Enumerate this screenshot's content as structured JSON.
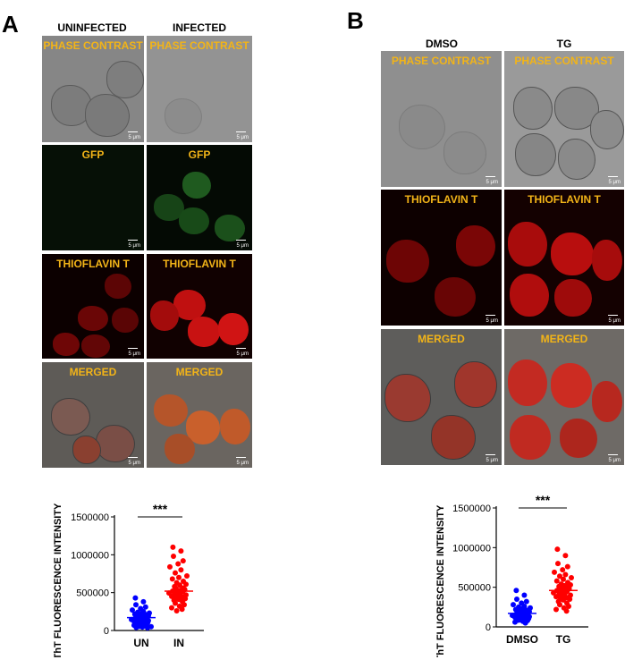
{
  "panel_a": {
    "letter": "A",
    "columns": [
      "UNINFECTED",
      "INFECTED"
    ],
    "rows": [
      "PHASE CONTRAST",
      "GFP",
      "THIOFLAVIN T",
      "MERGED"
    ],
    "scale_bar": "5 μm"
  },
  "panel_b": {
    "letter": "B",
    "columns": [
      "DMSO",
      "TG"
    ],
    "rows": [
      "PHASE CONTRAST",
      "THIOFLAVIN T",
      "MERGED"
    ],
    "scale_bar": "5 μm"
  },
  "chart_data": [
    {
      "type": "scatter",
      "title": "",
      "xlabel": "",
      "ylabel": "ThT FLUORESCENCE INTENSITY",
      "ylim": [
        0,
        1500000
      ],
      "yticks": [
        "0",
        "500000",
        "1000000",
        "1500000"
      ],
      "categories": [
        "UN",
        "IN"
      ],
      "significance": "***",
      "series": [
        {
          "category": "UN",
          "color": "#0000ff",
          "mean": 170000,
          "values": [
            430000,
            380000,
            340000,
            310000,
            290000,
            270000,
            250000,
            240000,
            230000,
            220000,
            215000,
            210000,
            200000,
            195000,
            190000,
            185000,
            180000,
            175000,
            170000,
            165000,
            160000,
            155000,
            150000,
            145000,
            140000,
            135000,
            130000,
            125000,
            120000,
            115000,
            110000,
            105000,
            100000,
            95000,
            90000,
            85000,
            80000,
            75000,
            70000,
            60000,
            55000,
            50000,
            45000,
            40000,
            35000
          ]
        },
        {
          "category": "IN",
          "color": "#ff0000",
          "mean": 520000,
          "values": [
            1100000,
            1050000,
            980000,
            920000,
            880000,
            840000,
            800000,
            760000,
            720000,
            700000,
            680000,
            650000,
            630000,
            610000,
            600000,
            580000,
            560000,
            550000,
            540000,
            530000,
            520000,
            510000,
            500000,
            495000,
            490000,
            480000,
            470000,
            460000,
            450000,
            440000,
            430000,
            420000,
            410000,
            400000,
            380000,
            360000,
            340000,
            320000,
            300000,
            280000,
            260000
          ]
        }
      ]
    },
    {
      "type": "scatter",
      "title": "",
      "xlabel": "",
      "ylabel": "ThT FLUORESCENCE INTENSITY",
      "ylim": [
        0,
        1500000
      ],
      "yticks": [
        "0",
        "500000",
        "1000000",
        "1500000"
      ],
      "categories": [
        "DMSO",
        "TG"
      ],
      "significance": "***",
      "series": [
        {
          "category": "DMSO",
          "color": "#0000ff",
          "mean": 170000,
          "values": [
            460000,
            400000,
            350000,
            320000,
            300000,
            280000,
            260000,
            250000,
            240000,
            230000,
            220000,
            210000,
            200000,
            195000,
            190000,
            185000,
            180000,
            175000,
            170000,
            165000,
            160000,
            155000,
            150000,
            145000,
            140000,
            135000,
            130000,
            125000,
            120000,
            115000,
            110000,
            105000,
            100000,
            95000,
            90000,
            85000,
            80000,
            70000,
            60000,
            50000
          ]
        },
        {
          "category": "TG",
          "color": "#ff0000",
          "mean": 460000,
          "values": [
            980000,
            900000,
            800000,
            760000,
            720000,
            690000,
            660000,
            640000,
            620000,
            600000,
            580000,
            560000,
            540000,
            530000,
            520000,
            510000,
            500000,
            490000,
            480000,
            470000,
            460000,
            450000,
            440000,
            430000,
            420000,
            410000,
            400000,
            390000,
            380000,
            370000,
            360000,
            350000,
            340000,
            320000,
            300000,
            280000,
            260000,
            240000,
            220000,
            200000
          ]
        }
      ]
    }
  ]
}
